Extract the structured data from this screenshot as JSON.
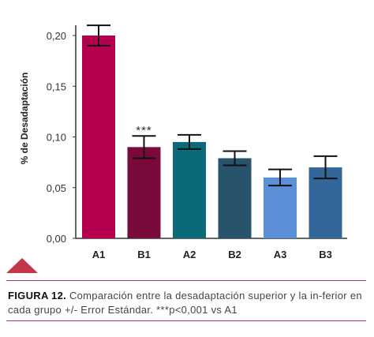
{
  "chart_data": {
    "type": "bar",
    "categories": [
      "A1",
      "B1",
      "A2",
      "B2",
      "A3",
      "B3"
    ],
    "values": [
      0.2,
      0.09,
      0.095,
      0.079,
      0.06,
      0.07
    ],
    "errors": [
      0.01,
      0.011,
      0.007,
      0.007,
      0.008,
      0.011
    ],
    "colors": [
      "#b5004f",
      "#7a0a3c",
      "#0b6a7a",
      "#27546a",
      "#5b8fd8",
      "#336699"
    ],
    "ylabel": "% de Desadaptación",
    "ylim": [
      0,
      0.22
    ],
    "yticks": [
      0.0,
      0.05,
      0.1,
      0.15,
      0.2
    ],
    "ytick_labels": [
      "0,00",
      "0,05",
      "0,10",
      "0,15",
      "0,20"
    ],
    "annotations": [
      {
        "category": "B1",
        "text": "***"
      }
    ]
  },
  "caption": {
    "label": "FIGURA 12.",
    "text": " Comparación entre la desadaptación superior y la in-ferior en cada grupo +/- Error Estándar. ***p<0,001 vs A1"
  },
  "marker_color": "#c4364a"
}
